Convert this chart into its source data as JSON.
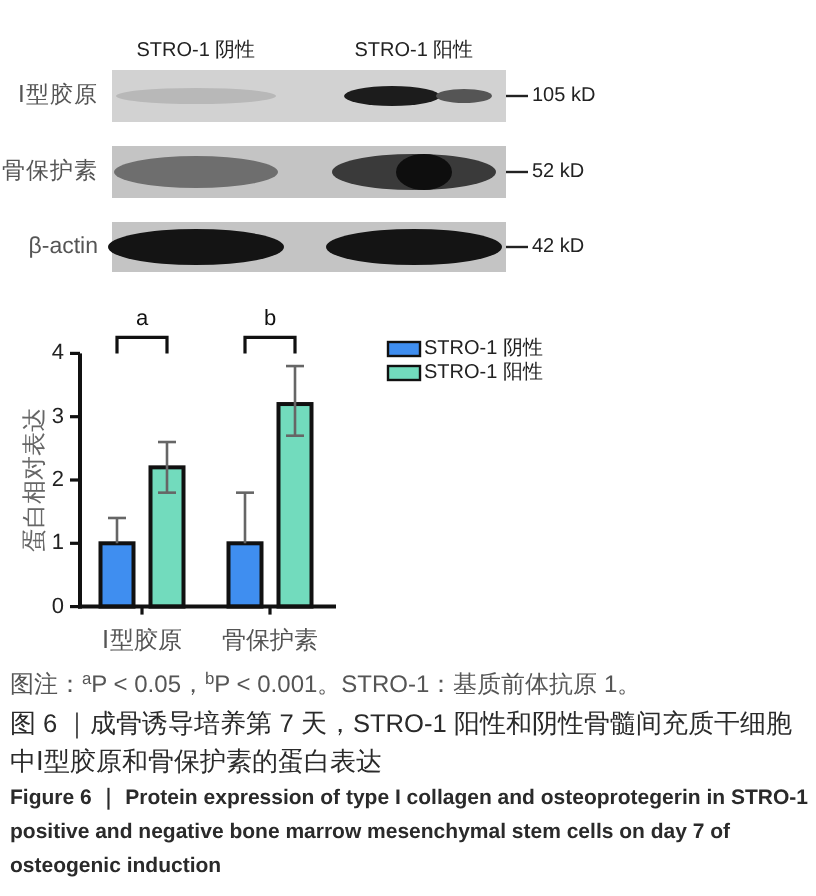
{
  "chart_data": {
    "type": "bar",
    "title": "图 6 ｜成骨诱导培养第 7 天，STRO-1 阳性和阴性骨髓间充质干细胞中Ⅰ型胶原和骨保护素的蛋白表达",
    "subtitle": "Figure 6 ｜ Protein expression of type I collagen and osteoprotegerin in STRO-1 positive and negative bone marrow mesenchymal stem cells on day 7 of osteogenic induction",
    "ylabel": "蛋白相对表达",
    "categories": [
      "Ⅰ型胶原",
      "骨保护素"
    ],
    "series": [
      {
        "name": "STRO-1 阴性",
        "color": "#3f8ef0",
        "values": [
          1,
          1
        ],
        "errors": [
          [
            1,
            1.4
          ],
          [
            1,
            1.8
          ]
        ]
      },
      {
        "name": "STRO-1 阳性",
        "color": "#72dbbd",
        "values": [
          2.2,
          3.2
        ],
        "errors": [
          [
            1.8,
            2.6
          ],
          [
            2.7,
            3.8
          ]
        ]
      }
    ],
    "ylim": [
      0,
      4
    ],
    "yticks": [
      0,
      1,
      2,
      3,
      4
    ],
    "legend": "top right",
    "annotations": [
      "a",
      "b",
      "STRO-1 阴性",
      "STRO-1 阳性",
      "Ⅰ型胶原",
      "骨保护素",
      "β-actin",
      "105 kD",
      "52 kD",
      "42 kD",
      "图注：$^{a}$P < 0.05，$^{b}$P < 0.001。STRO-1：基质前体抗原 1。"
    ]
  }
}
